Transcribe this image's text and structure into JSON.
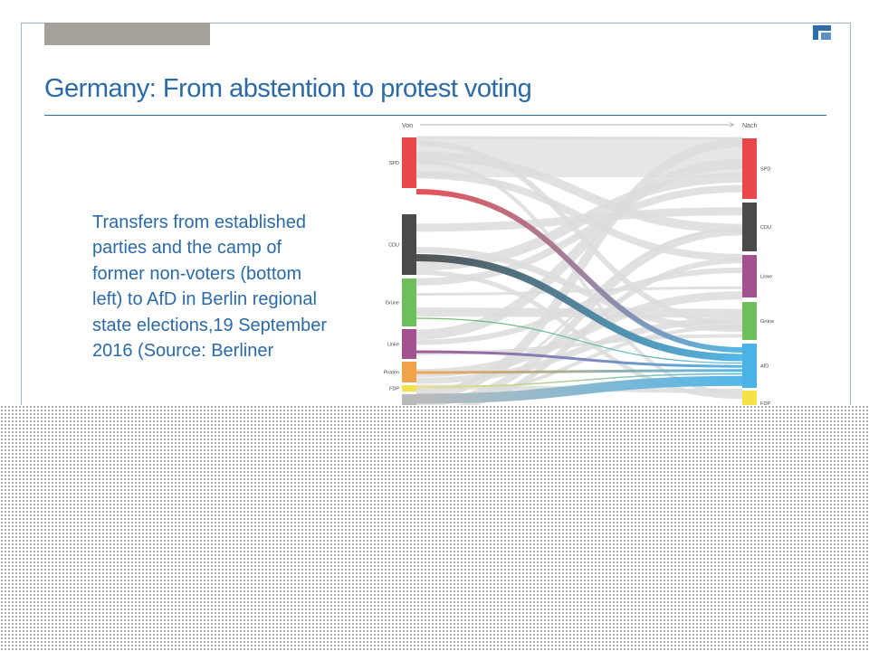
{
  "slide": {
    "title": "Germany: From abstention to protest voting",
    "body": "Transfers from established parties and the camp of former non-voters (bottom left) to AfD in Berlin regional state elections,19 September 2016 (Source: Berliner"
  },
  "colors": {
    "title": "#2b6aa6",
    "frame": "#9eb6cf",
    "tab": "#a6a19a"
  },
  "chart_data": {
    "type": "sankey",
    "source_axis_label": "Von",
    "target_axis_label": "Nach",
    "sources": [
      {
        "label": "SPD",
        "color": "#e8474b"
      },
      {
        "label": "CDU",
        "color": "#4a4a4a"
      },
      {
        "label": "Grüne",
        "color": "#6cbf5b"
      },
      {
        "label": "Linke",
        "color": "#a2538f"
      },
      {
        "label": "Piraten",
        "color": "#f2a34a"
      },
      {
        "label": "FDP",
        "color": "#f5e24a"
      },
      {
        "label": "",
        "color": "#b9b9b9"
      }
    ],
    "targets": [
      {
        "label": "SPD",
        "color": "#e8474b"
      },
      {
        "label": "CDU",
        "color": "#4a4a4a"
      },
      {
        "label": "Linke",
        "color": "#a2538f"
      },
      {
        "label": "Grüne",
        "color": "#6cbf5b"
      },
      {
        "label": "AfD",
        "color": "#4ab3e6"
      },
      {
        "label": "FDP",
        "color": "#f5e24a"
      }
    ],
    "highlighted_target": "AfD"
  }
}
